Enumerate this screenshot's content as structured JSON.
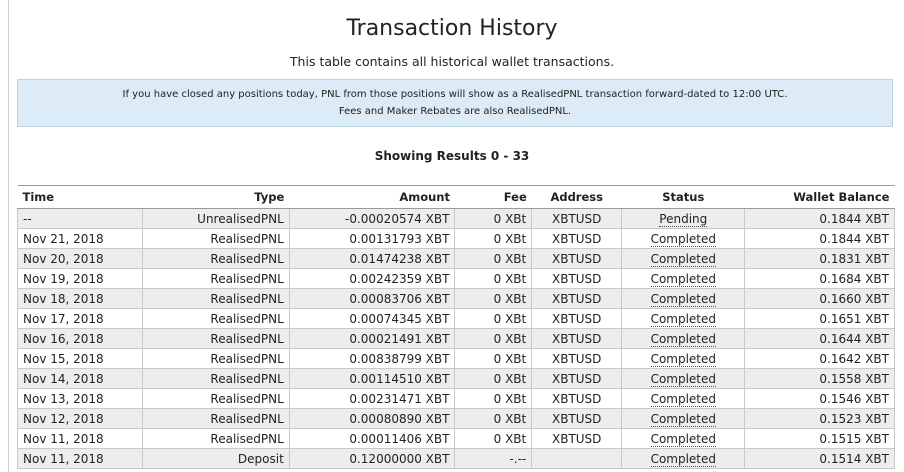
{
  "header": {
    "title": "Transaction History",
    "subtitle": "This table contains all historical wallet transactions."
  },
  "notice": {
    "line1": "If you have closed any positions today, PNL from those positions will show as a RealisedPNL transaction forward-dated to 12:00 UTC.",
    "line2": "Fees and Maker Rebates are also RealisedPNL."
  },
  "results_label": "Showing Results 0 - 33",
  "table": {
    "columns": {
      "time": "Time",
      "type": "Type",
      "amount": "Amount",
      "fee": "Fee",
      "address": "Address",
      "status": "Status",
      "balance": "Wallet Balance"
    },
    "rows": [
      {
        "time": "--",
        "type": "UnrealisedPNL",
        "amount": "-0.00020574 XBT",
        "fee": "0 XBt",
        "address": "XBTUSD",
        "status": "Pending",
        "balance": "0.1844 XBT"
      },
      {
        "time": "Nov 21, 2018",
        "type": "RealisedPNL",
        "amount": "0.00131793 XBT",
        "fee": "0 XBt",
        "address": "XBTUSD",
        "status": "Completed",
        "balance": "0.1844 XBT"
      },
      {
        "time": "Nov 20, 2018",
        "type": "RealisedPNL",
        "amount": "0.01474238 XBT",
        "fee": "0 XBt",
        "address": "XBTUSD",
        "status": "Completed",
        "balance": "0.1831 XBT"
      },
      {
        "time": "Nov 19, 2018",
        "type": "RealisedPNL",
        "amount": "0.00242359 XBT",
        "fee": "0 XBt",
        "address": "XBTUSD",
        "status": "Completed",
        "balance": "0.1684 XBT"
      },
      {
        "time": "Nov 18, 2018",
        "type": "RealisedPNL",
        "amount": "0.00083706 XBT",
        "fee": "0 XBt",
        "address": "XBTUSD",
        "status": "Completed",
        "balance": "0.1660 XBT"
      },
      {
        "time": "Nov 17, 2018",
        "type": "RealisedPNL",
        "amount": "0.00074345 XBT",
        "fee": "0 XBt",
        "address": "XBTUSD",
        "status": "Completed",
        "balance": "0.1651 XBT"
      },
      {
        "time": "Nov 16, 2018",
        "type": "RealisedPNL",
        "amount": "0.00021491 XBT",
        "fee": "0 XBt",
        "address": "XBTUSD",
        "status": "Completed",
        "balance": "0.1644 XBT"
      },
      {
        "time": "Nov 15, 2018",
        "type": "RealisedPNL",
        "amount": "0.00838799 XBT",
        "fee": "0 XBt",
        "address": "XBTUSD",
        "status": "Completed",
        "balance": "0.1642 XBT"
      },
      {
        "time": "Nov 14, 2018",
        "type": "RealisedPNL",
        "amount": "0.00114510 XBT",
        "fee": "0 XBt",
        "address": "XBTUSD",
        "status": "Completed",
        "balance": "0.1558 XBT"
      },
      {
        "time": "Nov 13, 2018",
        "type": "RealisedPNL",
        "amount": "0.00231471 XBT",
        "fee": "0 XBt",
        "address": "XBTUSD",
        "status": "Completed",
        "balance": "0.1546 XBT"
      },
      {
        "time": "Nov 12, 2018",
        "type": "RealisedPNL",
        "amount": "0.00080890 XBT",
        "fee": "0 XBt",
        "address": "XBTUSD",
        "status": "Completed",
        "balance": "0.1523 XBT"
      },
      {
        "time": "Nov 11, 2018",
        "type": "RealisedPNL",
        "amount": "0.00011406 XBT",
        "fee": "0 XBt",
        "address": "XBTUSD",
        "status": "Completed",
        "balance": "0.1515 XBT"
      },
      {
        "time": "Nov 11, 2018",
        "type": "Deposit",
        "amount": "0.12000000 XBT",
        "fee": "-.--",
        "address": "",
        "status": "Completed",
        "balance": "0.1514 XBT"
      }
    ]
  }
}
